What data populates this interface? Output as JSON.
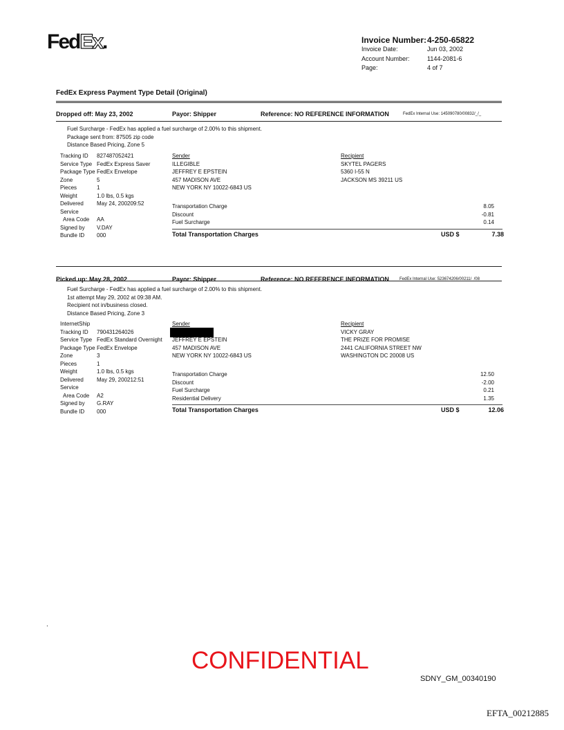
{
  "logo": {
    "text": "FedEx",
    "part1": "Fed",
    "part2": "Ex",
    "dot": "."
  },
  "invoice": {
    "number_label": "Invoice Number:",
    "number": "4-250-65822",
    "date_label": "Invoice Date:",
    "date": "Jun 03, 2002",
    "account_label": "Account Number:",
    "account": "1144-2081-6",
    "page_label": "Page:",
    "page": "4 of 7"
  },
  "section_title": "FedEx Express Payment Type Detail (Original)",
  "shipments": [
    {
      "header": {
        "date": "Dropped off: May 23, 2002",
        "payor": "Payor: Shipper",
        "reference": "Reference: NO REFERENCE INFORMATION",
        "internal": "FedEx Internal Use: 145090780/00832/_/_"
      },
      "notes": [
        "Fuel Surcharge - FedEx has applied a fuel surcharge of 2.00% to this shipment.",
        "Package sent from: 87505 zip code",
        "Distance Based Pricing, Zone 5"
      ],
      "details": [
        [
          "Tracking ID",
          "827487052421"
        ],
        [
          "Service Type",
          "FedEx Express Saver"
        ],
        [
          "Package Type",
          "FedEx Envelope"
        ],
        [
          "Zone",
          "5"
        ],
        [
          "Pieces",
          "1"
        ],
        [
          "Weight",
          "1.0 lbs, 0.5 kgs"
        ],
        [
          "Delivered",
          "May 24, 200209:52"
        ],
        [
          "Service",
          ""
        ],
        [
          "  Area Code",
          "AA"
        ],
        [
          "Signed by",
          "V.DAY"
        ],
        [
          "Bundle ID",
          "000"
        ]
      ],
      "sender_label": "Sender",
      "sender": [
        "ILLEGIBLE",
        "JEFFREY E EPSTEIN",
        "457 MADISON AVE",
        "NEW YORK NY 10022-6843  US"
      ],
      "recipient_label": "Recipient",
      "recipient": [
        "SKYTEL PAGERS",
        "5360 I-55 N",
        "JACKSON MS 39211  US"
      ],
      "charges": [
        [
          "Transportation Charge",
          "8.05"
        ],
        [
          "Discount",
          "-0.81"
        ],
        [
          "Fuel Surcharge",
          "0.14"
        ]
      ],
      "total_label": "Total Transportation Charges",
      "currency": "USD $",
      "total": "7.38"
    },
    {
      "header": {
        "date": "Picked up: May 28, 2002",
        "payor": "Payor: Shipper",
        "reference": "Reference: NO REFERENCE INFORMATION",
        "internal": "FedEx Internal Use: 523674206/00211/_/08"
      },
      "notes": [
        "Fuel Surcharge - FedEx has applied a fuel surcharge of 2.00% to this shipment.",
        "1st attempt May 29, 2002 at 09:38 AM.",
        "Recipient not in/business closed.",
        "Distance Based Pricing, Zone 3"
      ],
      "details": [
        [
          "InternetShip",
          ""
        ],
        [
          "Tracking ID",
          "790431264026"
        ],
        [
          "Service Type",
          "FedEx Standard Overnight"
        ],
        [
          "Package Type",
          "FedEx Envelope"
        ],
        [
          "Zone",
          "3"
        ],
        [
          "Pieces",
          "1"
        ],
        [
          "Weight",
          "1.0 lbs, 0.5 kgs"
        ],
        [
          "Delivered",
          "May 29, 200212:51"
        ],
        [
          "Service",
          ""
        ],
        [
          "  Area Code",
          "A2"
        ],
        [
          "Signed by",
          "G.RAY"
        ],
        [
          "Bundle ID",
          "000"
        ]
      ],
      "sender_label": "Sender",
      "sender": [
        "",
        "JEFFREY E EPSTEIN",
        "457 MADISON AVE",
        "NEW YORK NY 10022-6843  US"
      ],
      "sender_redacted": true,
      "recipient_label": "Recipient",
      "recipient": [
        "VICKY GRAY",
        "THE PRIZE FOR PROMISE",
        "2441 CALIFORNIA STREET NW",
        "WASHINGTON DC 20008  US"
      ],
      "charges": [
        [
          "Transportation Charge",
          "12.50"
        ],
        [
          "Discount",
          "-2.00"
        ],
        [
          "Fuel Surcharge",
          "0.21"
        ],
        [
          "Residential Delivery",
          "1.35"
        ]
      ],
      "total_label": "Total Transportation Charges",
      "currency": "USD $",
      "total": "12.06"
    }
  ],
  "footer": {
    "stamp": "CONFIDENTIAL",
    "stamp_color": "#e8141b",
    "bates": "SDNY_GM_00340190",
    "efta": "EFTA_00212885",
    "dot": "."
  }
}
